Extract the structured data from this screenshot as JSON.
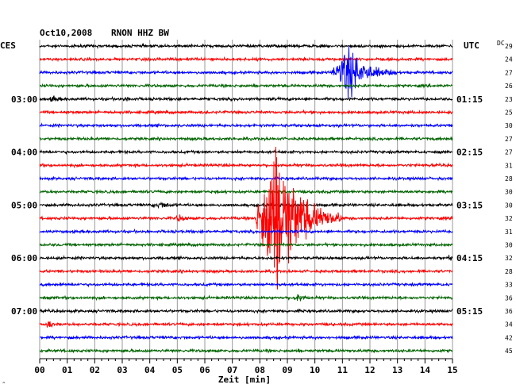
{
  "header": {
    "date": "Oct10,2008",
    "station": "RNON HHZ BW",
    "left_tz": "CES",
    "right_tz": "UTC",
    "dc_label": "DC"
  },
  "chart_data": {
    "type": "seismogram",
    "xlabel": "Zeit [min]",
    "xlim": [
      0,
      15
    ],
    "x_ticks": [
      "00",
      "01",
      "02",
      "03",
      "04",
      "05",
      "06",
      "07",
      "08",
      "09",
      "10",
      "11",
      "12",
      "13",
      "14",
      "15"
    ],
    "trace_count": 24,
    "trace_colors": [
      "#000000",
      "#ff0000",
      "#0000ff",
      "#006400"
    ],
    "left_time_labels": [
      {
        "trace": 4,
        "label": "03:00"
      },
      {
        "trace": 8,
        "label": "04:00"
      },
      {
        "trace": 12,
        "label": "05:00"
      },
      {
        "trace": 16,
        "label": "06:00"
      },
      {
        "trace": 20,
        "label": "07:00"
      }
    ],
    "right_time_labels": [
      {
        "trace": 4,
        "label": "01:15"
      },
      {
        "trace": 8,
        "label": "02:15"
      },
      {
        "trace": 12,
        "label": "03:15"
      },
      {
        "trace": 16,
        "label": "04:15"
      },
      {
        "trace": 20,
        "label": "05:15"
      }
    ],
    "dc_offsets": [
      "29",
      "24",
      "27",
      "26",
      "23",
      "25",
      "30",
      "27",
      "27",
      "31",
      "28",
      "30",
      "30",
      "32",
      "31",
      "30",
      "32",
      "28",
      "33",
      "36",
      "36",
      "34",
      "42",
      "45"
    ],
    "events": [
      {
        "trace": 2,
        "start_min": 10.6,
        "peak_min": 11.2,
        "end_min": 13.0,
        "amplitude": 30,
        "color": "#0000ff"
      },
      {
        "trace": 13,
        "start_min": 7.8,
        "peak_min": 8.55,
        "end_min": 11.0,
        "amplitude": 100,
        "color": "#ff0000"
      },
      {
        "trace": 4,
        "start_min": 0.3,
        "peak_min": 0.55,
        "end_min": 0.9,
        "amplitude": 3,
        "color": "#000000"
      },
      {
        "trace": 4,
        "start_min": 3.0,
        "peak_min": 3.2,
        "end_min": 3.5,
        "amplitude": 2,
        "color": "#000000"
      },
      {
        "trace": 12,
        "start_min": 4.0,
        "peak_min": 4.5,
        "end_min": 5.0,
        "amplitude": 3,
        "color": "#000000"
      },
      {
        "trace": 13,
        "start_min": 4.9,
        "peak_min": 5.1,
        "end_min": 5.5,
        "amplitude": 4,
        "color": "#ff0000"
      },
      {
        "trace": 19,
        "start_min": 9.2,
        "peak_min": 9.4,
        "end_min": 9.8,
        "amplitude": 6,
        "color": "#006400"
      },
      {
        "trace": 21,
        "start_min": 0.1,
        "peak_min": 0.35,
        "end_min": 0.7,
        "amplitude": 3,
        "color": "#ff0000"
      },
      {
        "trace": 16,
        "start_min": 14.8,
        "peak_min": 14.95,
        "end_min": 15.0,
        "amplitude": 3,
        "color": "#000000"
      }
    ]
  }
}
